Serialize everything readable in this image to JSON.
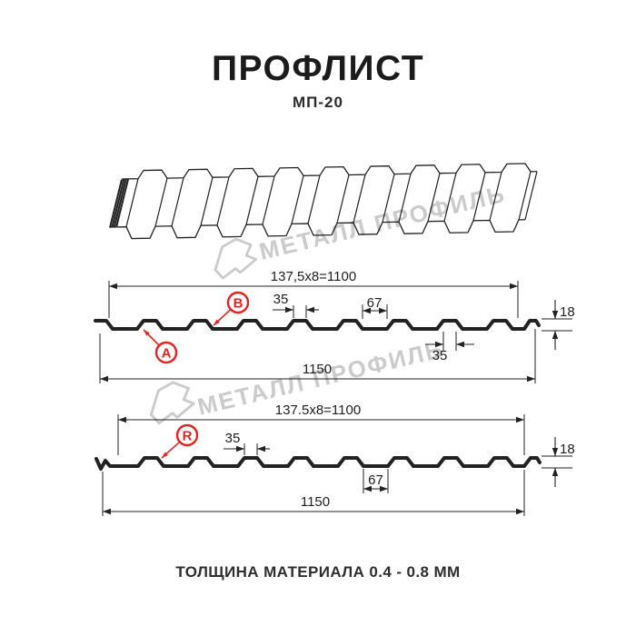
{
  "title": "ПРОФЛИСТ",
  "subtitle": "МП-20",
  "footer": {
    "thickness_note": "ТОЛЩИНА МАТЕРИАЛА 0.4 - 0.8 ММ"
  },
  "watermark": {
    "brand": "МЕТАЛЛ ПРОФИЛЬ"
  },
  "colors": {
    "accent_red": "#e62320",
    "line": "#222222",
    "watermark": "#cbcbcb"
  },
  "drawing": {
    "views": {
      "section_a": {
        "point_labels": [
          "A",
          "B"
        ],
        "dims": {
          "pitch_total": "137,5x8=1100",
          "rib_top": "35",
          "valley": "67",
          "height": "18",
          "rib_top_lower": "35",
          "overall_width": "1150"
        }
      },
      "section_r": {
        "point_labels": [
          "R"
        ],
        "dims": {
          "pitch_total": "137.5x8=1100",
          "rib_top": "35",
          "valley": "67",
          "height": "18",
          "overall_width": "1150"
        }
      }
    }
  }
}
